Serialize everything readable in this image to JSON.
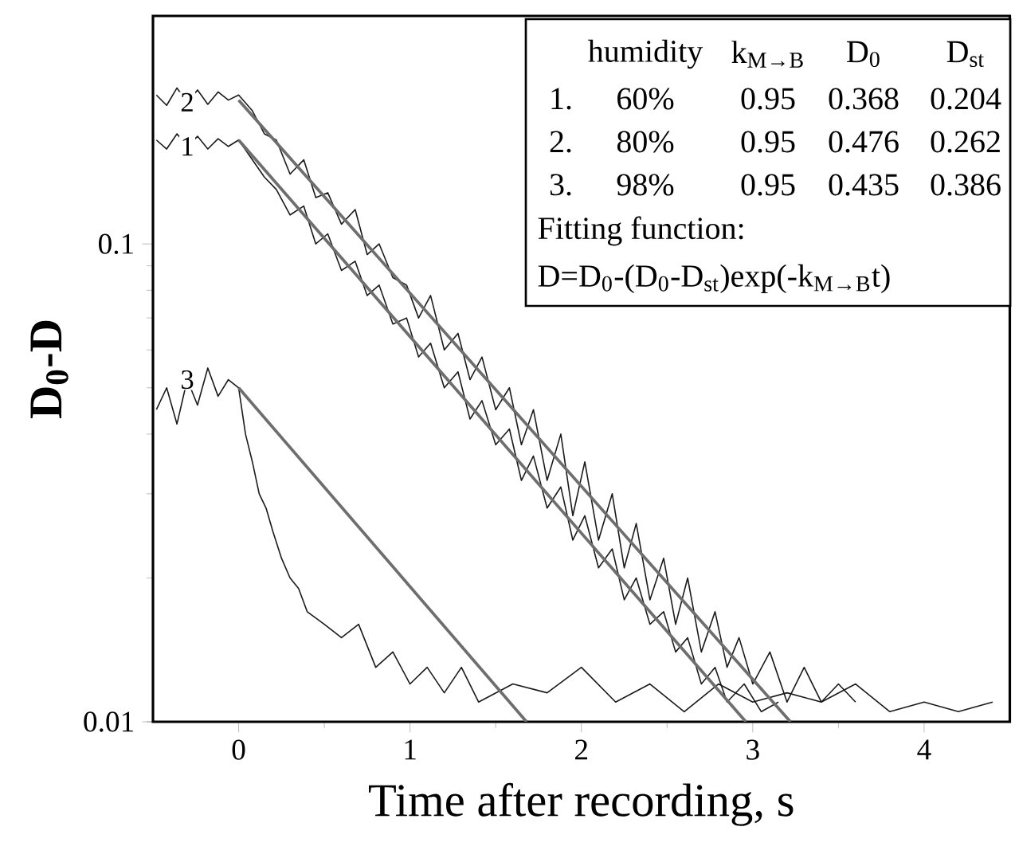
{
  "chart_data": {
    "type": "line",
    "xlabel": "Time after recording, s",
    "ylabel": "D$_{0}$-D",
    "log": "y",
    "xlim": [
      -0.5,
      4.5
    ],
    "xticks": [
      0,
      1,
      2,
      3,
      4
    ],
    "ylim": [
      0.01,
      0.3
    ],
    "yticks": [
      0.01,
      0.1
    ],
    "grid": false,
    "series": [
      {
        "name": "1",
        "color": "#1a1a1a",
        "x": [
          -0.48,
          -0.42,
          -0.36,
          -0.3,
          -0.24,
          -0.18,
          -0.12,
          -0.06,
          0,
          0.08,
          0.15,
          0.22,
          0.3,
          0.38,
          0.45,
          0.52,
          0.6,
          0.68,
          0.75,
          0.82,
          0.9,
          0.98,
          1.05,
          1.12,
          1.2,
          1.28,
          1.35,
          1.42,
          1.5,
          1.58,
          1.65,
          1.72,
          1.8,
          1.88,
          1.95,
          2.02,
          2.1,
          2.18,
          2.25,
          2.32,
          2.4,
          2.48,
          2.55,
          2.62,
          2.7,
          2.78,
          2.85,
          2.95,
          3.05,
          3.15
        ],
        "values": [
          0.165,
          0.158,
          0.17,
          0.16,
          0.168,
          0.158,
          0.166,
          0.16,
          0.165,
          0.15,
          0.138,
          0.13,
          0.115,
          0.12,
          0.1,
          0.105,
          0.088,
          0.092,
          0.078,
          0.082,
          0.068,
          0.07,
          0.058,
          0.062,
          0.05,
          0.054,
          0.043,
          0.047,
          0.038,
          0.041,
          0.032,
          0.036,
          0.028,
          0.031,
          0.024,
          0.027,
          0.021,
          0.023,
          0.018,
          0.02,
          0.016,
          0.017,
          0.014,
          0.015,
          0.012,
          0.013,
          0.011,
          0.012,
          0.0105,
          0.011
        ]
      },
      {
        "name": "2",
        "color": "#1a1a1a",
        "x": [
          -0.48,
          -0.42,
          -0.36,
          -0.3,
          -0.24,
          -0.18,
          -0.12,
          -0.06,
          0,
          0.08,
          0.15,
          0.22,
          0.3,
          0.38,
          0.45,
          0.52,
          0.6,
          0.68,
          0.75,
          0.82,
          0.9,
          0.98,
          1.05,
          1.12,
          1.2,
          1.28,
          1.35,
          1.42,
          1.5,
          1.58,
          1.65,
          1.72,
          1.8,
          1.88,
          1.95,
          2.02,
          2.1,
          2.18,
          2.25,
          2.32,
          2.4,
          2.48,
          2.55,
          2.62,
          2.7,
          2.78,
          2.85,
          2.92,
          3.0,
          3.1,
          3.2,
          3.3,
          3.4,
          3.5,
          3.6
        ],
        "values": [
          0.205,
          0.195,
          0.212,
          0.198,
          0.21,
          0.196,
          0.208,
          0.2,
          0.205,
          0.19,
          0.17,
          0.165,
          0.14,
          0.15,
          0.125,
          0.128,
          0.11,
          0.118,
          0.095,
          0.1,
          0.085,
          0.082,
          0.07,
          0.078,
          0.06,
          0.065,
          0.052,
          0.058,
          0.045,
          0.05,
          0.038,
          0.045,
          0.032,
          0.04,
          0.027,
          0.035,
          0.024,
          0.03,
          0.021,
          0.026,
          0.018,
          0.022,
          0.016,
          0.02,
          0.014,
          0.017,
          0.013,
          0.015,
          0.012,
          0.014,
          0.011,
          0.013,
          0.011,
          0.012,
          0.011
        ]
      },
      {
        "name": "3",
        "color": "#1a1a1a",
        "x": [
          -0.48,
          -0.42,
          -0.36,
          -0.3,
          -0.24,
          -0.18,
          -0.12,
          -0.06,
          0,
          0.04,
          0.08,
          0.12,
          0.16,
          0.2,
          0.25,
          0.3,
          0.35,
          0.4,
          0.5,
          0.6,
          0.7,
          0.8,
          0.9,
          1.0,
          1.1,
          1.2,
          1.3,
          1.4,
          1.6,
          1.8,
          2.0,
          2.2,
          2.4,
          2.6,
          2.8,
          3.0,
          3.2,
          3.4,
          3.6,
          3.8,
          4.0,
          4.2,
          4.4
        ],
        "values": [
          0.045,
          0.05,
          0.042,
          0.052,
          0.046,
          0.055,
          0.048,
          0.052,
          0.05,
          0.04,
          0.035,
          0.03,
          0.028,
          0.025,
          0.022,
          0.02,
          0.019,
          0.017,
          0.016,
          0.015,
          0.016,
          0.013,
          0.014,
          0.012,
          0.013,
          0.0115,
          0.013,
          0.011,
          0.012,
          0.0115,
          0.013,
          0.011,
          0.012,
          0.0105,
          0.012,
          0.011,
          0.0115,
          0.011,
          0.012,
          0.0105,
          0.011,
          0.0105,
          0.011
        ]
      },
      {
        "color": "#6e6e6e",
        "x": [
          0,
          2.96
        ],
        "values": [
          0.165,
          0.01
        ]
      },
      {
        "color": "#6e6e6e",
        "x": [
          0,
          3.22
        ],
        "values": [
          0.2,
          0.01
        ]
      },
      {
        "color": "#6e6e6e",
        "x": [
          0,
          1.68
        ],
        "values": [
          0.05,
          0.01
        ]
      }
    ],
    "annotations": [
      "humidity",
      "k$_{M→B}$",
      "D$_{0}$",
      "D$_{st}$",
      "1.",
      "60%",
      "0.95",
      "0.368",
      "0.204",
      "2.",
      "80%",
      "0.95",
      "0.476",
      "0.262",
      "3.",
      "98%",
      "0.95",
      "0.435",
      "0.386",
      "Fitting function:",
      "D=D$_{0}$-(D$_{0}$-D$_{st}$)exp(-k$_{M→B}$t)"
    ]
  }
}
